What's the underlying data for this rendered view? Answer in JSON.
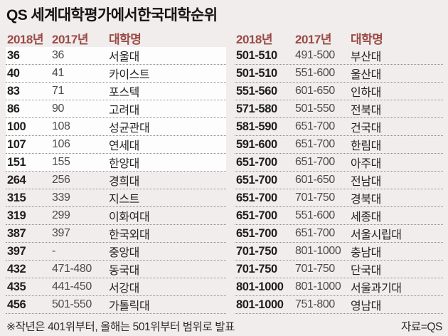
{
  "title": "QS 세계대학평가에서한국대학순위",
  "footnote": "※작년은 401위부터, 올해는 501위부터 범위로 발표",
  "source": "자료=QS",
  "colors": {
    "background": "#f0edec",
    "header_text": "#9b4a45",
    "highlight_row_bg": "#fdfdfd",
    "rank_2018_text": "#1e1e1e",
    "rank_2017_text": "#4c4c4c",
    "divider": "#8f8f8f"
  },
  "chart_data": {
    "type": "table",
    "title": "QS 세계대학평가에서한국대학순위",
    "columns": [
      "2018년",
      "2017년",
      "대학명"
    ],
    "left_table": {
      "headers": [
        "2018년",
        "2017년",
        "대학명"
      ],
      "rows": [
        {
          "r2018": "36",
          "r2017": "36",
          "name": "서울대",
          "highlight": true
        },
        {
          "r2018": "40",
          "r2017": "41",
          "name": "카이스트",
          "highlight": true
        },
        {
          "r2018": "83",
          "r2017": "71",
          "name": "포스텍",
          "highlight": true
        },
        {
          "r2018": "86",
          "r2017": "90",
          "name": "고려대",
          "highlight": true
        },
        {
          "r2018": "100",
          "r2017": "108",
          "name": "성균관대",
          "highlight": true
        },
        {
          "r2018": "107",
          "r2017": "106",
          "name": "연세대",
          "highlight": true
        },
        {
          "r2018": "151",
          "r2017": "155",
          "name": "한양대",
          "highlight": true
        },
        {
          "r2018": "264",
          "r2017": "256",
          "name": "경희대",
          "highlight": false
        },
        {
          "r2018": "315",
          "r2017": "339",
          "name": "지스트",
          "highlight": false
        },
        {
          "r2018": "319",
          "r2017": "299",
          "name": "이화여대",
          "highlight": false
        },
        {
          "r2018": "387",
          "r2017": "397",
          "name": "한국외대",
          "highlight": false
        },
        {
          "r2018": "397",
          "r2017": "-",
          "name": "중앙대",
          "highlight": false
        },
        {
          "r2018": "432",
          "r2017": "471-480",
          "name": "동국대",
          "highlight": false
        },
        {
          "r2018": "435",
          "r2017": "441-450",
          "name": "서강대",
          "highlight": false
        },
        {
          "r2018": "456",
          "r2017": "501-550",
          "name": "가톨릭대",
          "highlight": false
        }
      ]
    },
    "right_table": {
      "headers": [
        "2018년",
        "2017년",
        "대학명"
      ],
      "rows": [
        {
          "r2018": "501-510",
          "r2017": "491-500",
          "name": "부산대",
          "highlight": false
        },
        {
          "r2018": "501-510",
          "r2017": "551-600",
          "name": "울산대",
          "highlight": false
        },
        {
          "r2018": "551-560",
          "r2017": "601-650",
          "name": "인하대",
          "highlight": false
        },
        {
          "r2018": "571-580",
          "r2017": "501-550",
          "name": "전북대",
          "highlight": false
        },
        {
          "r2018": "581-590",
          "r2017": "651-700",
          "name": "건국대",
          "highlight": false
        },
        {
          "r2018": "591-600",
          "r2017": "651-700",
          "name": "한림대",
          "highlight": false
        },
        {
          "r2018": "651-700",
          "r2017": "651-700",
          "name": "아주대",
          "highlight": false
        },
        {
          "r2018": "651-700",
          "r2017": "601-650",
          "name": "전남대",
          "highlight": false
        },
        {
          "r2018": "651-700",
          "r2017": "701-750",
          "name": "경북대",
          "highlight": false
        },
        {
          "r2018": "651-700",
          "r2017": "551-600",
          "name": "세종대",
          "highlight": false
        },
        {
          "r2018": "651-700",
          "r2017": "651-700",
          "name": "서울시립대",
          "highlight": false
        },
        {
          "r2018": "701-750",
          "r2017": "801-1000",
          "name": "충남대",
          "highlight": false
        },
        {
          "r2018": "701-750",
          "r2017": "701-750",
          "name": "단국대",
          "highlight": false
        },
        {
          "r2018": "801-1000",
          "r2017": "801-1000",
          "name": "서울과기대",
          "highlight": false
        },
        {
          "r2018": "801-1000",
          "r2017": "751-800",
          "name": "영남대",
          "highlight": false
        }
      ]
    }
  }
}
